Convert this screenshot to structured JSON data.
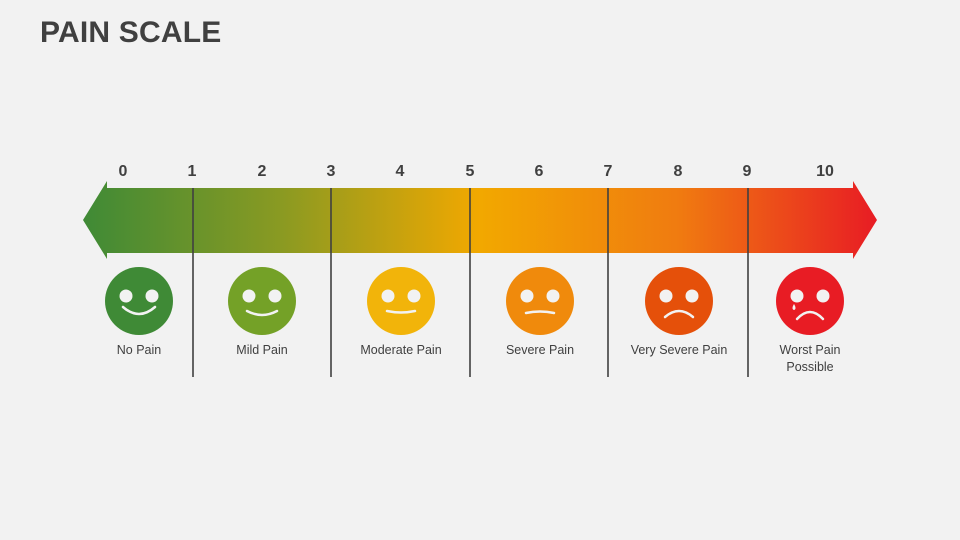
{
  "title": "PAIN SCALE",
  "scale_numbers": [
    "0",
    "1",
    "2",
    "3",
    "4",
    "5",
    "6",
    "7",
    "8",
    "9",
    "10"
  ],
  "gradient_colors": [
    "#3f8a36",
    "#8a9a22",
    "#f2a800",
    "#f07b10",
    "#e81c24"
  ],
  "levels": [
    {
      "label": "No Pain",
      "color": "#3f8a36",
      "face": "big-smile"
    },
    {
      "label": "Mild Pain",
      "color": "#74a127",
      "face": "smile"
    },
    {
      "label": "Moderate Pain",
      "color": "#f2b40a",
      "face": "neutral"
    },
    {
      "label": "Severe Pain",
      "color": "#f08a0c",
      "face": "slight-frown"
    },
    {
      "label": "Very Severe Pain",
      "color": "#e5500a",
      "face": "frown"
    },
    {
      "label": "Worst Pain Possible",
      "color": "#e81c24",
      "face": "crying-frown"
    }
  ]
}
